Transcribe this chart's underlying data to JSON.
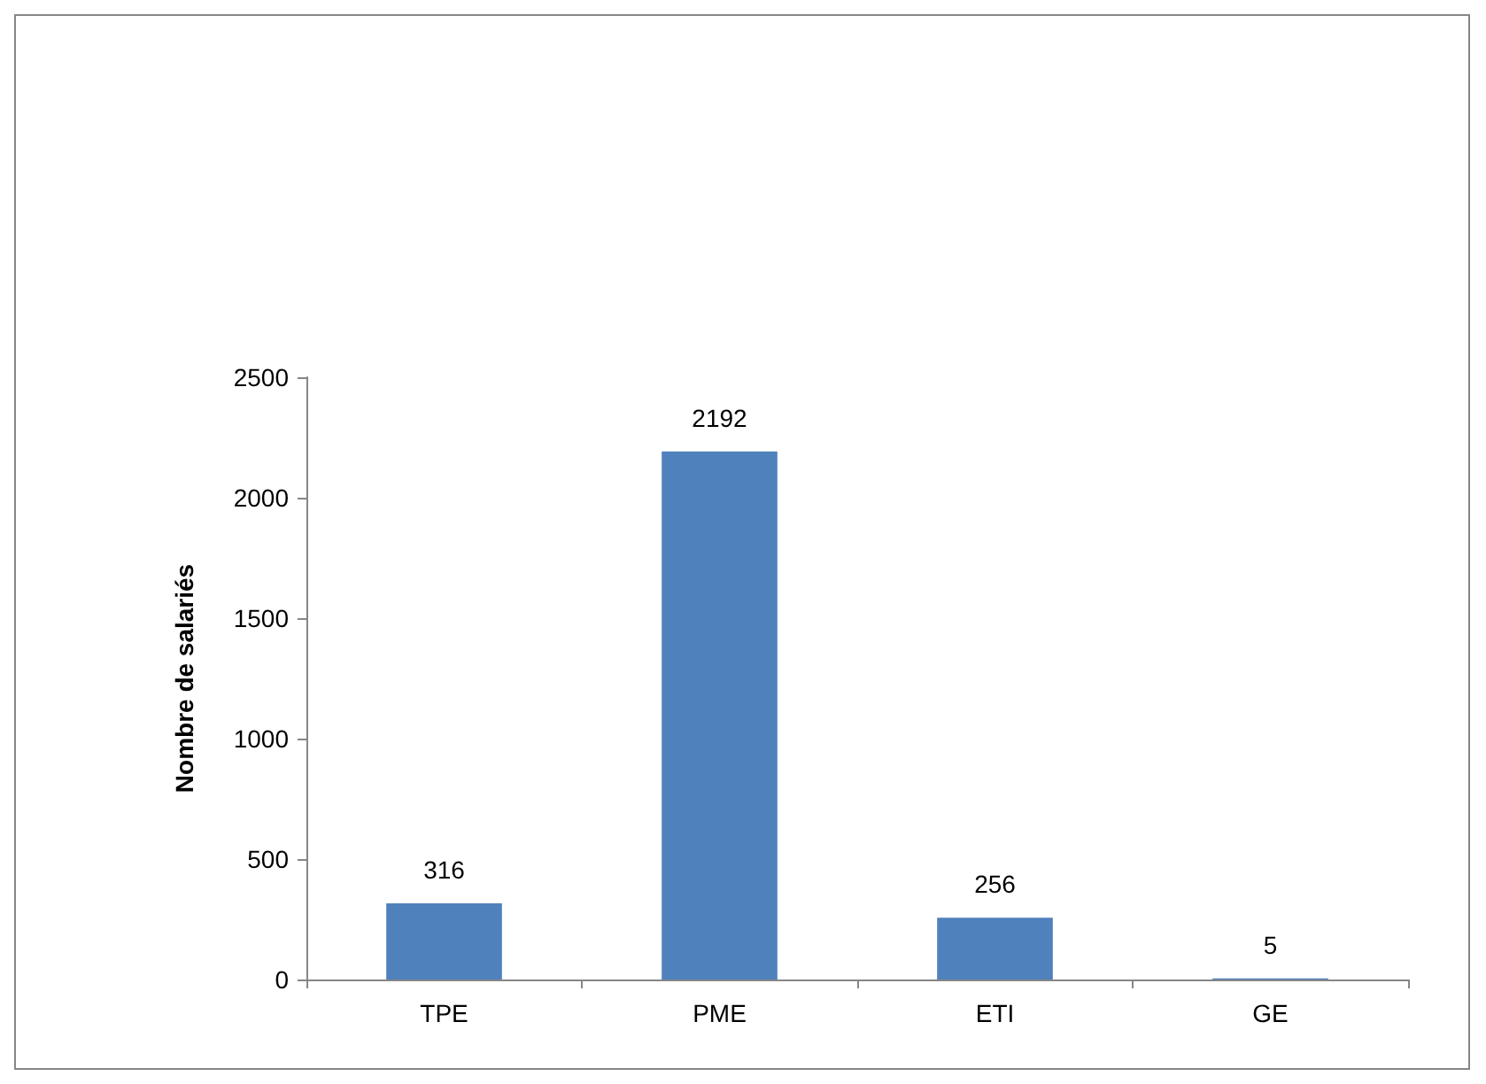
{
  "chart_data": {
    "type": "bar",
    "ylabel": "Nombre de salariés",
    "categories": [
      "TPE",
      "PME",
      "ETI",
      "GE"
    ],
    "series": [
      {
        "color": "#4f81bd",
        "values": [
          316,
          2192,
          256,
          5
        ]
      }
    ],
    "ylim": [
      0,
      2500
    ],
    "yticks": [
      0,
      500,
      1000,
      1500,
      2000,
      2500
    ],
    "data_labels": true,
    "grid": false
  }
}
